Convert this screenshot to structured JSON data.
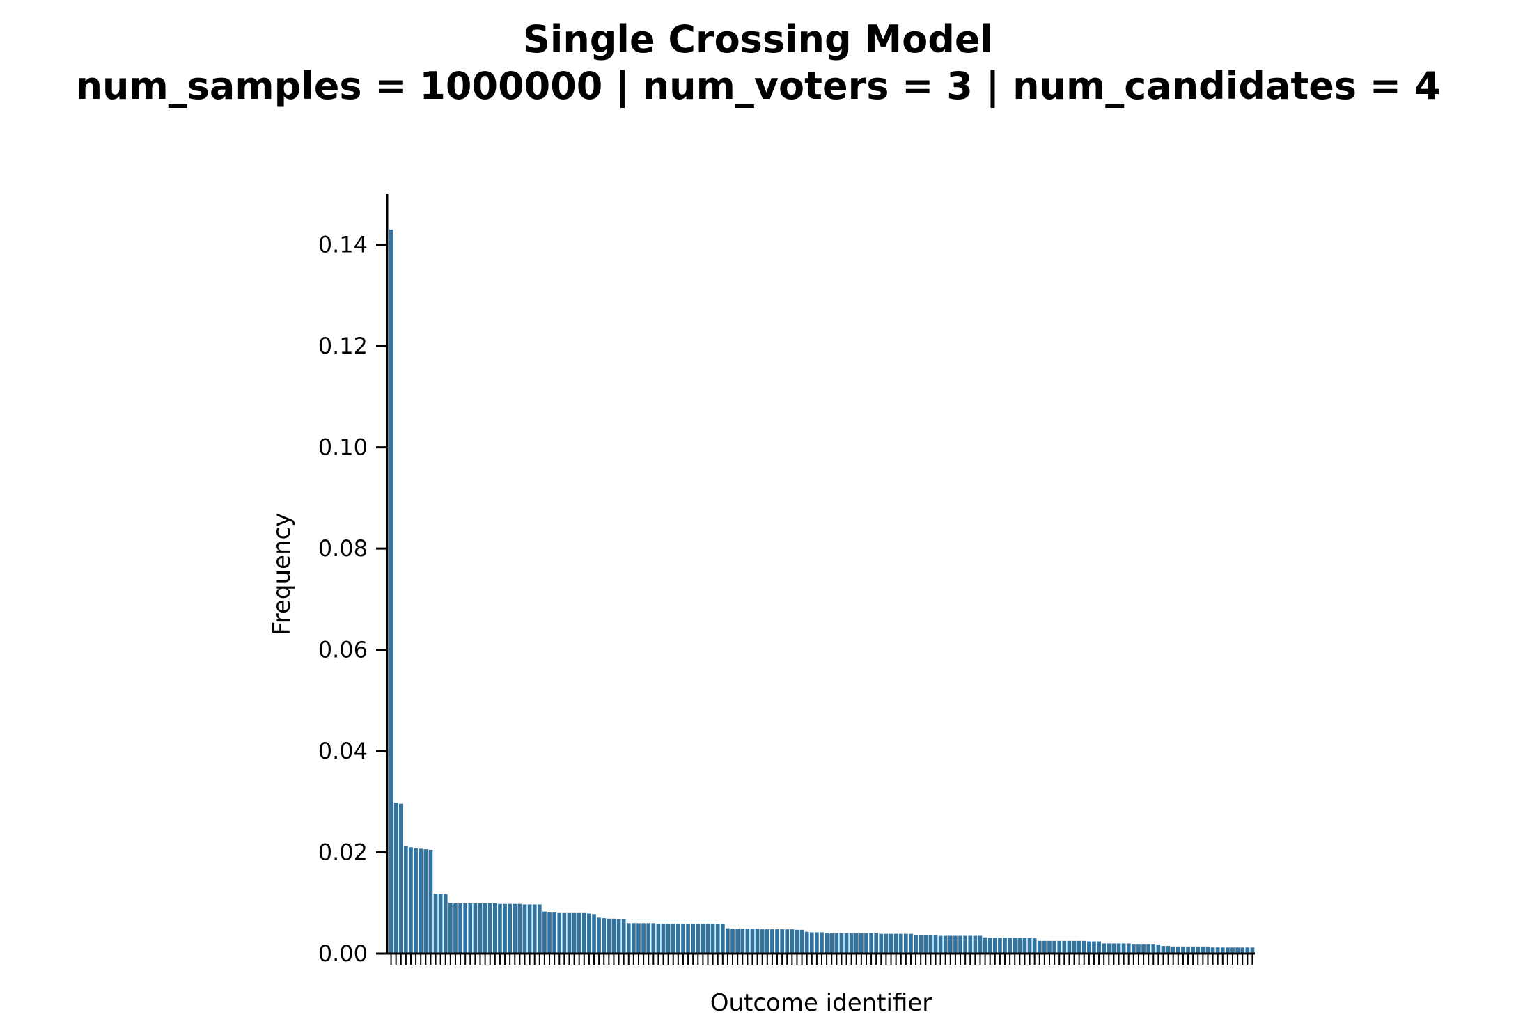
{
  "chart_data": {
    "type": "bar",
    "title": "Single Crossing Model",
    "subtitle": "num_samples = 1000000 | num_voters = 3 | num_candidates = 4",
    "xlabel": "Outcome identifier",
    "ylabel": "Frequency",
    "ylim": [
      0,
      0.15
    ],
    "yticks": [
      "0.00",
      "0.02",
      "0.04",
      "0.06",
      "0.08",
      "0.10",
      "0.12",
      "0.14"
    ],
    "ytick_values": [
      0,
      0.02,
      0.04,
      0.06,
      0.08,
      0.1,
      0.12,
      0.14
    ],
    "grid": false,
    "bar_color": "#3274a1",
    "values": [
      0.143,
      0.0298,
      0.0296,
      0.0212,
      0.021,
      0.0208,
      0.0207,
      0.0206,
      0.0205,
      0.0118,
      0.0118,
      0.0117,
      0.01,
      0.0099,
      0.0099,
      0.0099,
      0.0099,
      0.0099,
      0.0099,
      0.0099,
      0.0099,
      0.0099,
      0.0098,
      0.0098,
      0.0098,
      0.0098,
      0.0098,
      0.0097,
      0.0097,
      0.0097,
      0.0097,
      0.0083,
      0.0081,
      0.0081,
      0.008,
      0.008,
      0.008,
      0.008,
      0.008,
      0.008,
      0.0079,
      0.0078,
      0.0071,
      0.007,
      0.0069,
      0.0069,
      0.0068,
      0.0068,
      0.006,
      0.006,
      0.006,
      0.006,
      0.006,
      0.006,
      0.0059,
      0.0059,
      0.0059,
      0.0059,
      0.0059,
      0.0059,
      0.0059,
      0.0059,
      0.0059,
      0.0059,
      0.0059,
      0.0059,
      0.0058,
      0.0058,
      0.005,
      0.0049,
      0.0049,
      0.0049,
      0.0049,
      0.0049,
      0.0049,
      0.0048,
      0.0048,
      0.0048,
      0.0048,
      0.0048,
      0.0048,
      0.0048,
      0.0047,
      0.0047,
      0.0043,
      0.0042,
      0.0042,
      0.0042,
      0.0041,
      0.004,
      0.004,
      0.004,
      0.004,
      0.004,
      0.004,
      0.004,
      0.004,
      0.004,
      0.004,
      0.0039,
      0.0039,
      0.0039,
      0.0039,
      0.0039,
      0.0039,
      0.0039,
      0.0036,
      0.0036,
      0.0036,
      0.0036,
      0.0036,
      0.0035,
      0.0035,
      0.0035,
      0.0035,
      0.0035,
      0.0035,
      0.0035,
      0.0035,
      0.0035,
      0.0032,
      0.0031,
      0.0031,
      0.0031,
      0.0031,
      0.0031,
      0.0031,
      0.0031,
      0.0031,
      0.0031,
      0.003,
      0.0025,
      0.0025,
      0.0025,
      0.0025,
      0.0025,
      0.0025,
      0.0025,
      0.0025,
      0.0025,
      0.0025,
      0.0024,
      0.0024,
      0.0024,
      0.002,
      0.002,
      0.002,
      0.002,
      0.002,
      0.002,
      0.0019,
      0.0019,
      0.0019,
      0.0019,
      0.0019,
      0.0018,
      0.0015,
      0.0015,
      0.0014,
      0.0014,
      0.0014,
      0.0014,
      0.0014,
      0.0014,
      0.0014,
      0.0014,
      0.0012,
      0.0012,
      0.0012,
      0.0012,
      0.0012,
      0.0012,
      0.0012,
      0.0012,
      0.0012
    ]
  }
}
